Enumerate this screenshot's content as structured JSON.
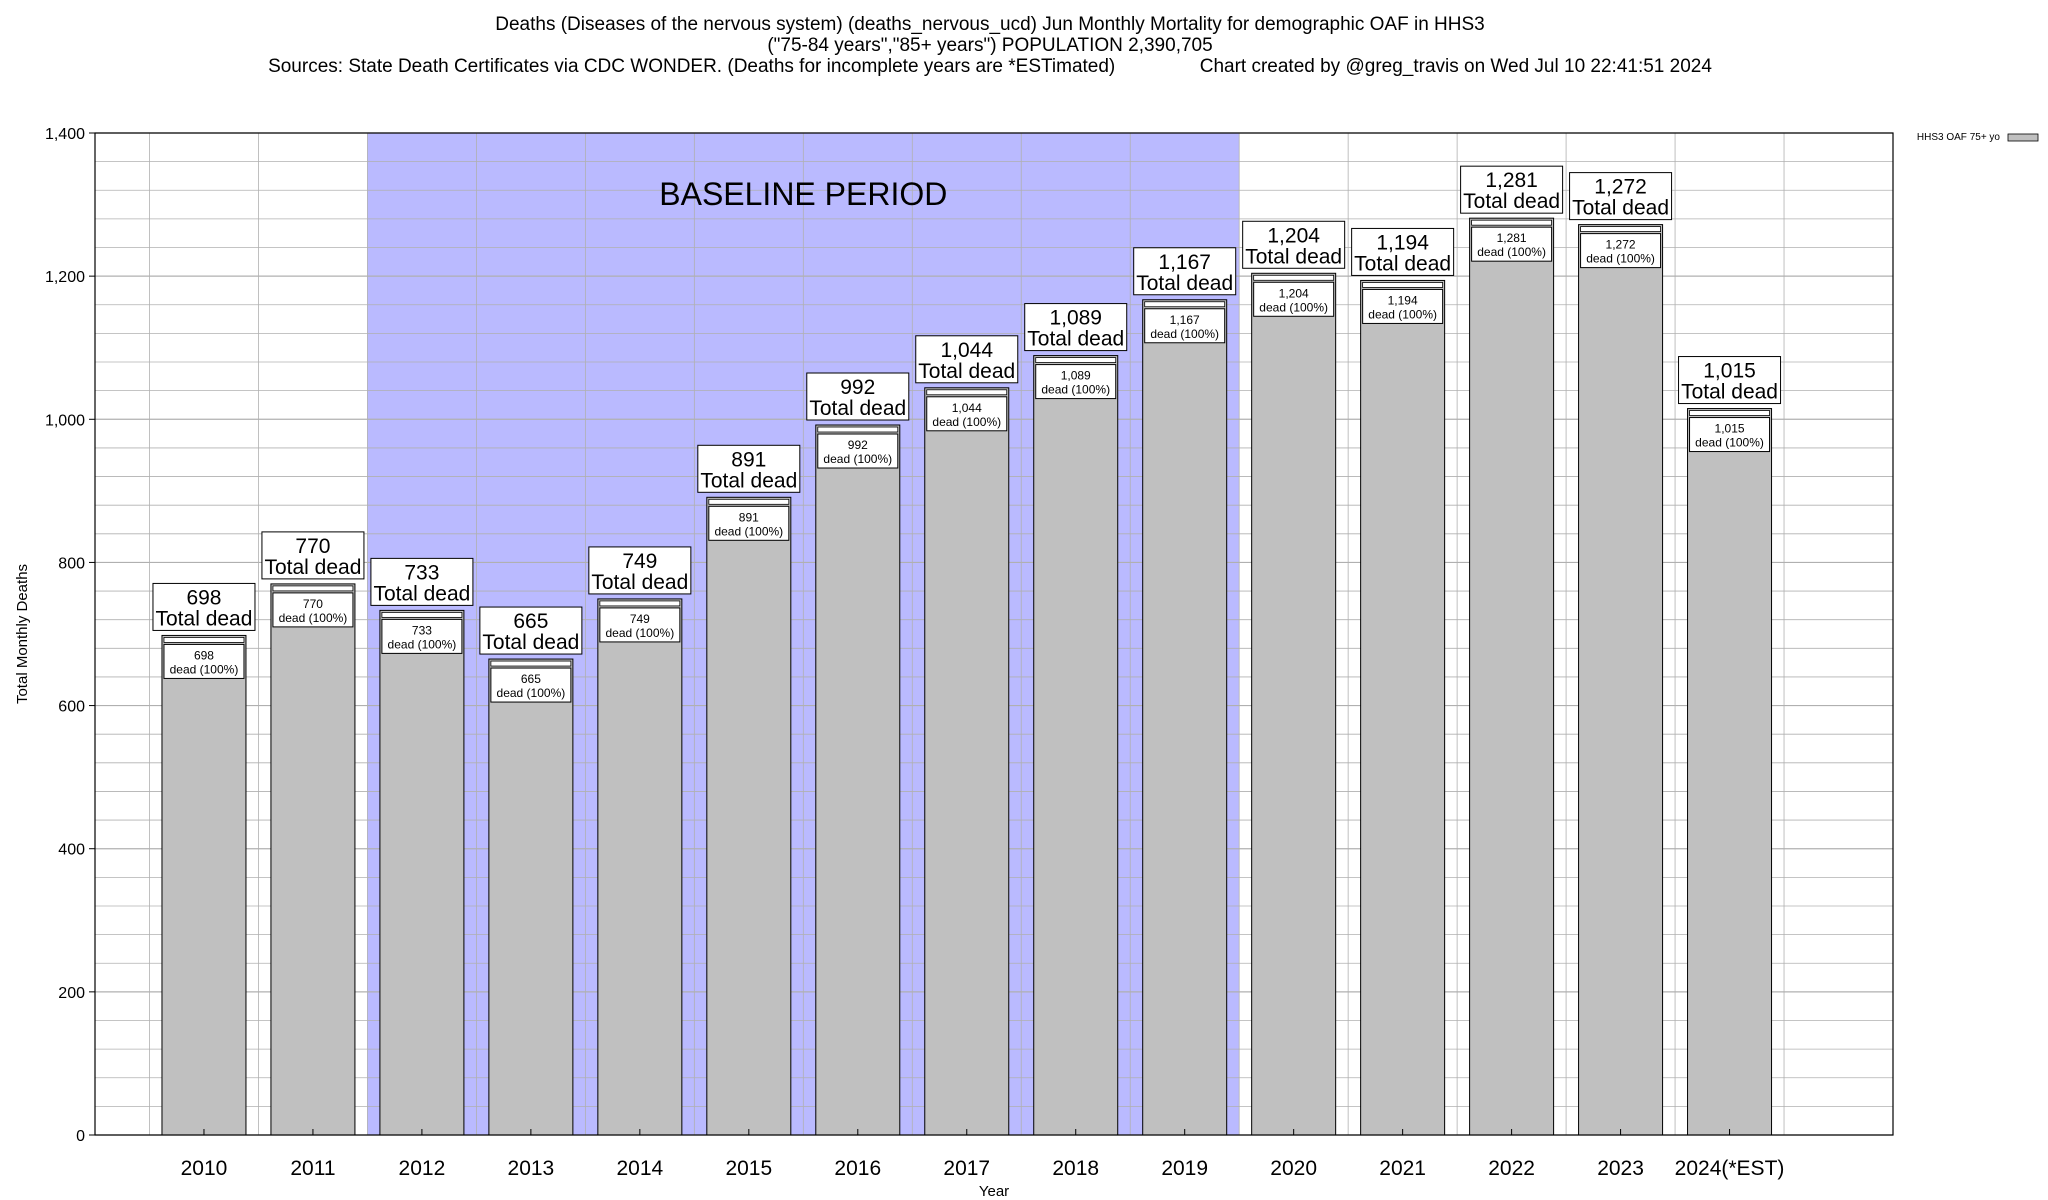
{
  "title_lines": [
    "Deaths (Diseases of the nervous system) (deaths_nervous_ucd) Jun Monthly Mortality for demographic OAF in HHS3",
    "(\"75-84 years\",\"85+ years\") POPULATION 2,390,705",
    "Sources: State Death Certificates via CDC WONDER. (Deaths for incomplete years are *ESTimated)                Chart created by @greg_travis on Wed Jul 10 22:41:51 2024"
  ],
  "colors": {
    "bar_fill": "#c0c0c0",
    "bar_stroke": "#000000",
    "baseline_fill": "#babaff",
    "grid": "#b0b0b0",
    "background": "#ffffff"
  },
  "chart_data": {
    "type": "bar",
    "xlabel": "Year",
    "ylabel": "Total Monthly Deaths",
    "ylim": [
      0,
      1400
    ],
    "yticks": [
      0,
      200,
      400,
      600,
      800,
      1000,
      1200,
      1400
    ],
    "ytick_labels": [
      "0",
      "200",
      "400",
      "600",
      "800",
      "1,000",
      "1,200",
      "1,400"
    ],
    "grid": true,
    "legend": {
      "placement": "top-right",
      "entries": [
        "HHS3 OAF 75+ yo"
      ]
    },
    "categories": [
      "2010",
      "2011",
      "2012",
      "2013",
      "2014",
      "2015",
      "2016",
      "2017",
      "2018",
      "2019",
      "2020",
      "2021",
      "2022",
      "2023",
      "2024(*EST)"
    ],
    "series": [
      {
        "name": "HHS3 OAF 75+ yo",
        "values": [
          698,
          770,
          733,
          665,
          749,
          891,
          992,
          1044,
          1089,
          1167,
          1204,
          1194,
          1281,
          1272,
          1015
        ]
      }
    ],
    "value_labels": [
      "698",
      "770",
      "733",
      "665",
      "749",
      "891",
      "992",
      "1,044",
      "1,089",
      "1,167",
      "1,204",
      "1,194",
      "1,281",
      "1,272",
      "1,015"
    ],
    "total_label_suffix": "Total dead",
    "inner_label_suffix": "dead (100%)",
    "baseline_period": {
      "label": "BASELINE PERIOD",
      "start": "2012",
      "end": "2019"
    }
  }
}
